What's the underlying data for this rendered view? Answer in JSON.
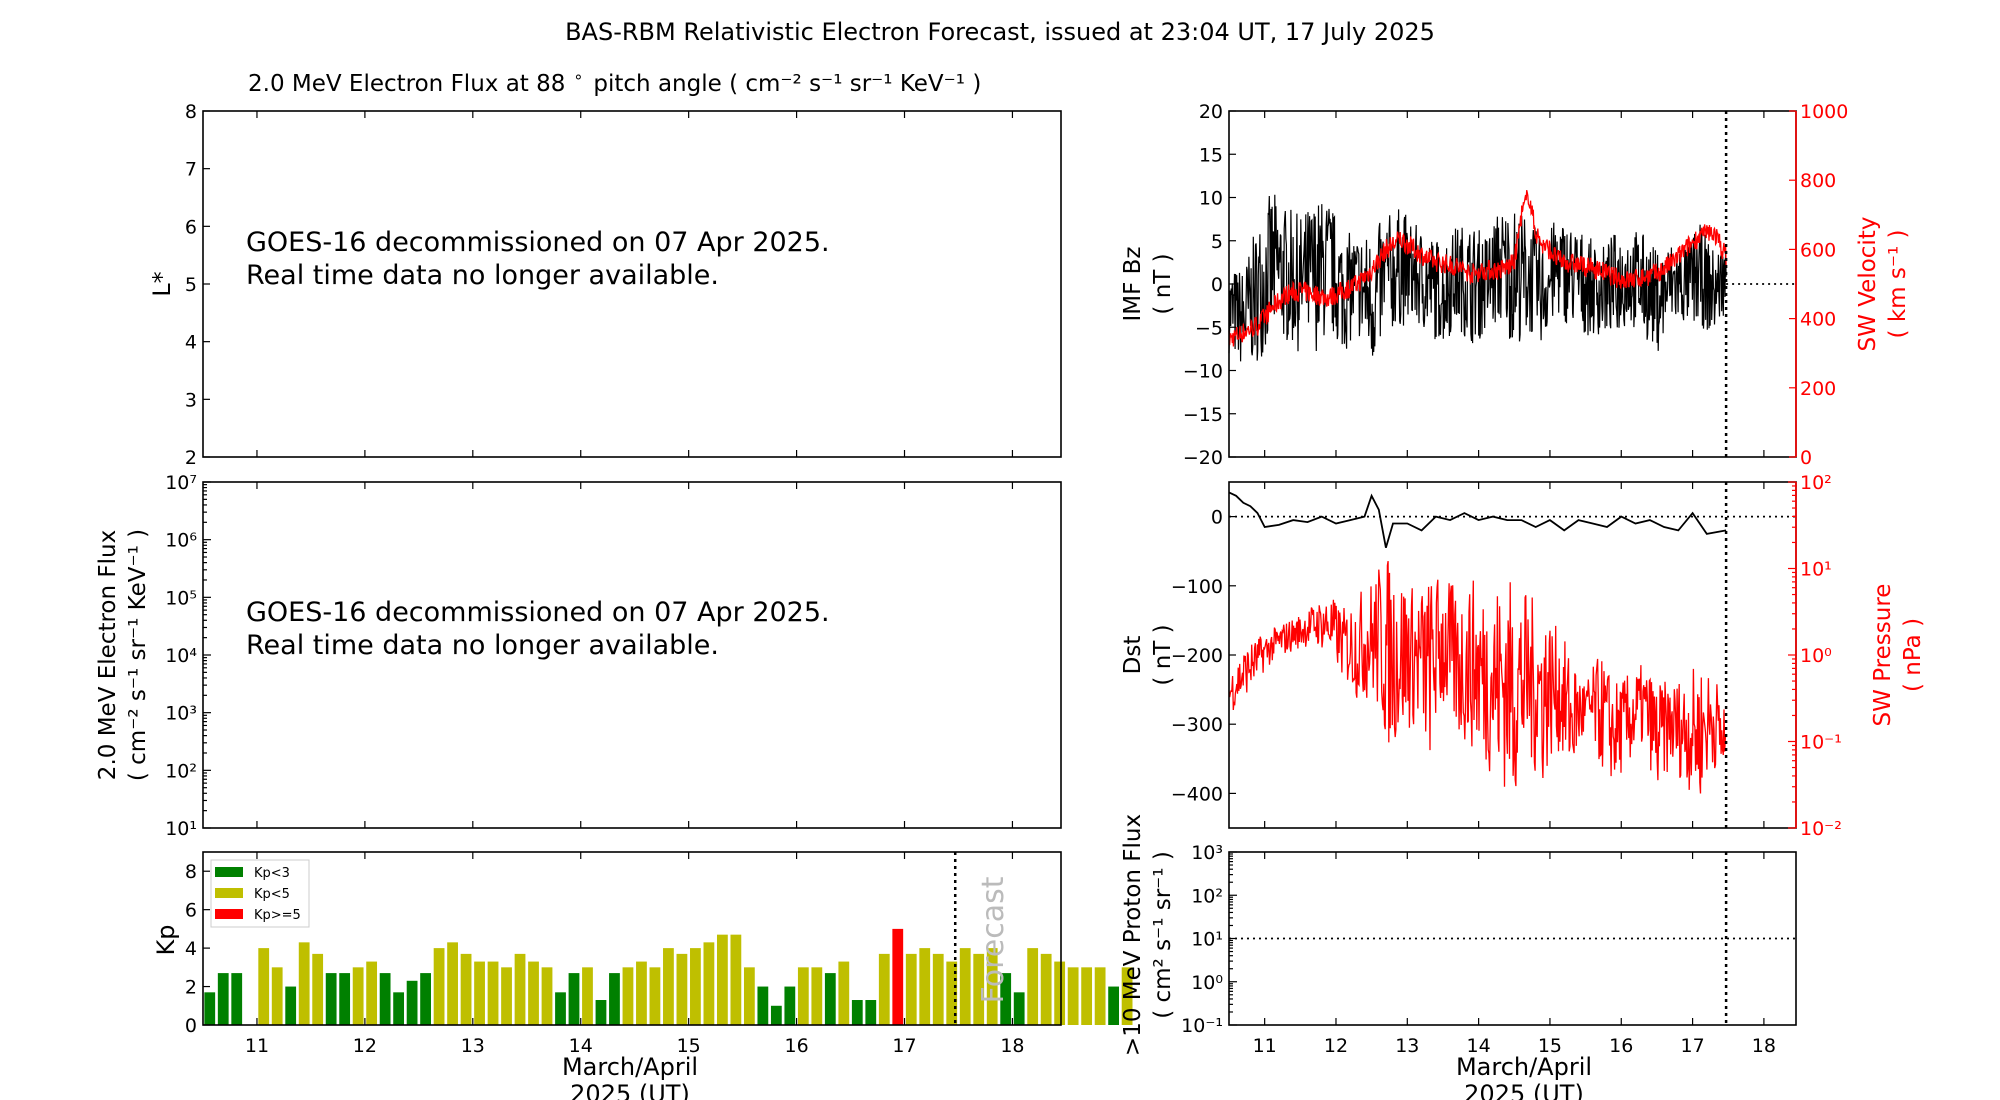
{
  "page": {
    "title": "BAS-RBM Relativistic Electron Forecast, issued at 23:04 UT, 17 July 2025"
  },
  "notice": {
    "line1": "GOES-16 decommissioned on 07 Apr 2025.",
    "line2": "Real time data no longer available."
  },
  "colors": {
    "kp_low": "#008000",
    "kp_mid": "#bfbf00",
    "kp_high": "#ff0000",
    "solar_wind": "#ff0000",
    "imf": "#000000"
  },
  "chart_data": [
    {
      "id": "lstar",
      "type": "heatmap",
      "title_text": "2.0 MeV Electron Flux at 88",
      "title_units": "pitch angle ( cm⁻² s⁻¹ sr⁻¹ KeV⁻¹ )",
      "ylabel": "L*",
      "ylim": [
        2,
        8
      ],
      "yticks": [
        "2",
        "3",
        "4",
        "5",
        "6",
        "7",
        "8"
      ],
      "xlim": [
        10.5,
        18.45
      ]
    },
    {
      "id": "flux",
      "type": "line",
      "ylabel_line1": "2.0 MeV Electron Flux",
      "ylabel_line2": "( cm⁻² s⁻¹ sr⁻¹ KeV⁻¹ )",
      "y_scale": "log",
      "ylim": [
        10,
        10000000
      ],
      "yticks": [
        "10¹",
        "10²",
        "10³",
        "10⁴",
        "10⁵",
        "10⁶",
        "10⁷"
      ],
      "xlim": [
        10.5,
        18.45
      ]
    },
    {
      "id": "kp",
      "type": "bar",
      "ylabel": "Kp",
      "ylim": [
        0,
        9
      ],
      "yticks": [
        "0",
        "2",
        "4",
        "6",
        "8"
      ],
      "xlim": [
        10.5,
        18.45
      ],
      "xticks": [
        "11",
        "12",
        "13",
        "14",
        "15",
        "16",
        "17",
        "18"
      ],
      "xlabel_line1": "March/April",
      "xlabel_line2": "2025 (UT)",
      "forecast_start": 17.47,
      "forecast_label": "Forecast",
      "bin_hours": 3,
      "start": 10.5,
      "legend": [
        "Kp<3",
        "Kp<5",
        "Kp>=5"
      ],
      "legend_position": "top-left",
      "values": [
        1.7,
        2.7,
        2.7,
        0,
        4.0,
        3.0,
        2.0,
        4.3,
        3.7,
        2.7,
        2.7,
        3.0,
        3.3,
        2.7,
        1.7,
        2.3,
        2.7,
        4.0,
        4.3,
        3.7,
        3.3,
        3.3,
        3.0,
        3.7,
        3.3,
        3.0,
        1.7,
        2.7,
        3.0,
        1.3,
        2.7,
        3.0,
        3.3,
        3.0,
        4.0,
        3.7,
        4.0,
        4.3,
        4.7,
        4.7,
        3.0,
        2.0,
        1.0,
        2.0,
        3.0,
        3.0,
        2.7,
        3.3,
        1.3,
        1.3,
        3.7,
        5.0,
        3.7,
        4.0,
        3.7,
        3.3,
        4.0,
        3.7,
        4.0,
        2.7,
        1.7,
        4.0,
        3.7,
        3.3,
        3.0,
        3.0,
        3.0,
        2.0,
        3.0
      ]
    },
    {
      "id": "imf",
      "type": "line",
      "ylabel_line1": "IMF Bz",
      "ylabel_line2": "( nT )",
      "ylim": [
        -20,
        20
      ],
      "yticks": [
        "−20",
        "−15",
        "−10",
        "−5",
        "0",
        "5",
        "10",
        "15",
        "20"
      ],
      "right_ylabel_line1": "SW Velocity",
      "right_ylabel_line2": "( km s⁻¹ )",
      "right_ylim": [
        0,
        1000
      ],
      "right_yticks": [
        "0",
        "200",
        "400",
        "600",
        "800",
        "1000"
      ],
      "xlim": [
        10.5,
        18.45
      ],
      "data_end": 17.47,
      "series": [
        {
          "key": "bz",
          "x": [
            10.5,
            10.7,
            10.9,
            11.1,
            11.3,
            11.5,
            11.7,
            11.9,
            12.1,
            12.3,
            12.5,
            12.7,
            12.9,
            13.1,
            13.3,
            13.5,
            13.7,
            13.9,
            14.1,
            14.3,
            14.5,
            14.7,
            14.9,
            15.1,
            15.3,
            15.5,
            15.7,
            15.9,
            16.1,
            16.3,
            16.5,
            16.7,
            16.9,
            17.1,
            17.3,
            17.47
          ],
          "center": [
            -3,
            -4,
            -1,
            2,
            1,
            0,
            1,
            2,
            -1,
            0,
            -2,
            1,
            2,
            1,
            0,
            -1,
            1,
            0,
            0,
            2,
            1,
            1,
            -1,
            2,
            1,
            0,
            -1,
            0,
            1,
            0,
            -2,
            0,
            0,
            1,
            -1,
            1
          ],
          "amplitude": [
            5,
            6,
            8,
            9,
            8,
            8,
            9,
            8,
            7,
            6,
            8,
            7,
            7,
            6,
            6,
            6,
            6,
            7,
            6,
            7,
            8,
            7,
            6,
            6,
            6,
            6,
            5,
            6,
            6,
            6,
            6,
            5,
            5,
            6,
            5,
            4
          ]
        },
        {
          "key": "velocity",
          "x": [
            10.5,
            10.7,
            10.9,
            11.1,
            11.3,
            11.5,
            11.7,
            11.9,
            12.1,
            12.3,
            12.5,
            12.7,
            12.9,
            13.1,
            13.3,
            13.5,
            13.7,
            13.9,
            14.1,
            14.3,
            14.5,
            14.6,
            14.7,
            14.8,
            14.9,
            15.0,
            15.1,
            15.3,
            15.5,
            15.7,
            15.9,
            16.1,
            16.3,
            16.5,
            16.7,
            16.9,
            17.1,
            17.3,
            17.47
          ],
          "values": [
            340,
            360,
            380,
            430,
            470,
            480,
            470,
            460,
            480,
            500,
            540,
            600,
            630,
            600,
            570,
            560,
            550,
            530,
            540,
            540,
            560,
            700,
            760,
            650,
            610,
            600,
            570,
            560,
            550,
            540,
            520,
            510,
            520,
            530,
            560,
            600,
            640,
            650,
            580
          ]
        }
      ]
    },
    {
      "id": "dst",
      "type": "line",
      "ylabel_line1": "Dst",
      "ylabel_line2": "( nT )",
      "ylim": [
        -450,
        50
      ],
      "yticks": [
        "−400",
        "−300",
        "−200",
        "−100",
        "0"
      ],
      "right_ylabel_line1": "SW Pressure",
      "right_ylabel_line2": "( nPa )",
      "right_y_scale": "log",
      "right_ylim": [
        0.01,
        100
      ],
      "right_yticks": [
        "10⁻²",
        "10⁻¹",
        "10⁰",
        "10¹",
        "10²"
      ],
      "xlim": [
        10.5,
        18.45
      ],
      "data_end": 17.47,
      "series": [
        {
          "key": "dst",
          "x": [
            10.5,
            10.6,
            10.7,
            10.8,
            10.9,
            11.0,
            11.2,
            11.4,
            11.6,
            11.8,
            12.0,
            12.2,
            12.4,
            12.5,
            12.6,
            12.7,
            12.8,
            13.0,
            13.2,
            13.4,
            13.6,
            13.8,
            14.0,
            14.2,
            14.4,
            14.6,
            14.8,
            15.0,
            15.2,
            15.4,
            15.6,
            15.8,
            16.0,
            16.2,
            16.4,
            16.6,
            16.8,
            17.0,
            17.2,
            17.47
          ],
          "values": [
            35,
            30,
            20,
            15,
            5,
            -15,
            -12,
            -5,
            -8,
            0,
            -10,
            -5,
            0,
            30,
            10,
            -45,
            -10,
            -10,
            -20,
            0,
            -5,
            5,
            -5,
            0,
            -5,
            -5,
            -15,
            -5,
            -20,
            -5,
            -10,
            -15,
            0,
            -10,
            -5,
            -15,
            -20,
            5,
            -25,
            -20
          ]
        },
        {
          "key": "pressure",
          "x": [
            10.5,
            10.7,
            10.9,
            11.1,
            11.3,
            11.5,
            11.7,
            11.9,
            12.1,
            12.3,
            12.5,
            12.7,
            12.9,
            13.1,
            13.3,
            13.5,
            13.7,
            13.9,
            14.1,
            14.3,
            14.5,
            14.7,
            14.9,
            15.1,
            15.3,
            15.5,
            15.7,
            15.9,
            16.1,
            16.3,
            16.5,
            16.7,
            16.9,
            17.1,
            17.3,
            17.47
          ],
          "low": [
            0.2,
            0.3,
            0.5,
            0.8,
            1.0,
            1.2,
            1.3,
            1.0,
            0.5,
            0.3,
            0.3,
            0.08,
            0.1,
            0.15,
            0.05,
            0.2,
            0.1,
            0.08,
            0.05,
            0.03,
            0.02,
            0.05,
            0.03,
            0.08,
            0.03,
            0.1,
            0.05,
            0.03,
            0.05,
            0.08,
            0.02,
            0.05,
            0.03,
            0.02,
            0.05,
            0.02
          ],
          "high": [
            0.6,
            1.2,
            1.6,
            2.0,
            2.5,
            3.0,
            4.0,
            5.0,
            3.5,
            5.0,
            8.0,
            15.0,
            10.0,
            6.0,
            8.0,
            10.0,
            5.0,
            8.0,
            6.0,
            8.0,
            8.0,
            5.0,
            4.0,
            2.0,
            1.0,
            0.5,
            1.0,
            0.5,
            0.6,
            0.8,
            0.5,
            0.5,
            0.6,
            0.8,
            0.6,
            0.3
          ]
        }
      ]
    },
    {
      "id": "proton",
      "type": "line",
      "ylabel_line1": ">10 MeV Proton Flux",
      "ylabel_line2": "( cm² s⁻¹ sr⁻¹ )",
      "y_scale": "log",
      "ylim": [
        0.1,
        1000
      ],
      "yticks": [
        "10⁻¹",
        "10⁰",
        "10¹",
        "10²",
        "10³"
      ],
      "threshold": 10,
      "xlim": [
        10.5,
        18.45
      ],
      "xticks": [
        "11",
        "12",
        "13",
        "14",
        "15",
        "16",
        "17",
        "18"
      ],
      "xlabel_line1": "March/April",
      "xlabel_line2": "2025 (UT)",
      "data_end": 17.47
    }
  ]
}
